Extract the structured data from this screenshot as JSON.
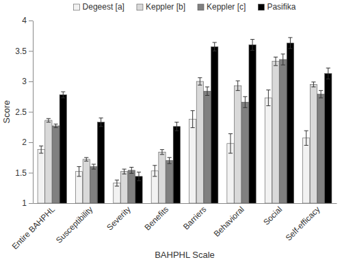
{
  "chart_data": {
    "type": "bar",
    "x_label": "BAHPHL Scale",
    "y_label": "Score",
    "categories": [
      "Entire BAHPHL",
      "Susceptibility",
      "Severity",
      "Benefits",
      "Barriers",
      "Behavioral",
      "Social",
      "Self-efficacy"
    ],
    "series": [
      {
        "name": "Degeest [a]",
        "color": "#f2f2f2",
        "values": [
          1.88,
          1.52,
          1.33,
          1.53,
          2.38,
          1.98,
          2.73,
          2.07
        ],
        "errors": [
          0.06,
          0.08,
          0.05,
          0.09,
          0.14,
          0.16,
          0.13,
          0.12
        ]
      },
      {
        "name": "Keppler [b]",
        "color": "#d9d9d9",
        "values": [
          2.36,
          1.72,
          1.52,
          1.84,
          3.0,
          2.93,
          3.33,
          2.95
        ],
        "errors": [
          0.03,
          0.03,
          0.04,
          0.04,
          0.06,
          0.08,
          0.07,
          0.04
        ]
      },
      {
        "name": "Keppler [c]",
        "color": "#808080",
        "values": [
          2.27,
          1.6,
          1.54,
          1.7,
          2.84,
          2.66,
          3.36,
          2.79
        ],
        "errors": [
          0.03,
          0.04,
          0.05,
          0.05,
          0.07,
          0.09,
          0.09,
          0.06
        ]
      },
      {
        "name": "Pasifika",
        "color": "#000000",
        "values": [
          2.78,
          2.33,
          1.44,
          2.26,
          3.57,
          3.6,
          3.63,
          3.13
        ],
        "errors": [
          0.05,
          0.07,
          0.07,
          0.07,
          0.07,
          0.09,
          0.09,
          0.09
        ]
      }
    ],
    "ylim": [
      1,
      4
    ],
    "yticks": [
      1,
      1.5,
      2,
      2.5,
      3,
      3.5,
      4
    ],
    "grid": false,
    "legend": "top"
  }
}
